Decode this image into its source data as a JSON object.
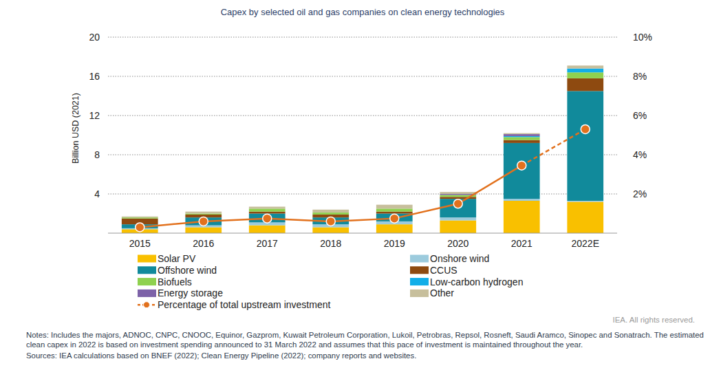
{
  "chart_data": {
    "type": "bar",
    "title": "Capex by selected oil and gas companies on clean energy technologies",
    "y_label": "Billion USD (2021)",
    "categories": [
      "2015",
      "2016",
      "2017",
      "2018",
      "2019",
      "2020",
      "2021",
      "2022E"
    ],
    "stacked": true,
    "grid": true,
    "legend": "bottom",
    "ylim": [
      0,
      20
    ],
    "yticks": [
      4,
      8,
      12,
      16,
      20
    ],
    "y2lim": [
      0,
      10
    ],
    "y2ticks": [
      {
        "value": 2,
        "label": "2%"
      },
      {
        "value": 4,
        "label": "4%"
      },
      {
        "value": 6,
        "label": "6%"
      },
      {
        "value": 8,
        "label": "8%"
      },
      {
        "value": 10,
        "label": "10%"
      }
    ],
    "series": [
      {
        "name": "Solar PV",
        "type": "bar",
        "color": "#f9c000",
        "values": [
          0.4,
          0.6,
          0.8,
          0.6,
          0.9,
          1.3,
          3.3,
          3.2
        ]
      },
      {
        "name": "Onshore wind",
        "type": "bar",
        "color": "#9ccbdd",
        "values": [
          0.1,
          0.2,
          0.3,
          0.3,
          0.3,
          0.3,
          0.2,
          0.1
        ]
      },
      {
        "name": "Offshore wind",
        "type": "bar",
        "color": "#118a9b",
        "values": [
          0.4,
          0.8,
          0.9,
          0.7,
          0.8,
          1.9,
          5.7,
          11.2
        ]
      },
      {
        "name": "CCUS",
        "type": "bar",
        "color": "#8e4a10",
        "values": [
          0.6,
          0.3,
          0.2,
          0.3,
          0.2,
          0.2,
          0.3,
          1.3
        ]
      },
      {
        "name": "Biofuels",
        "type": "bar",
        "color": "#8fd14f",
        "values": [
          0.1,
          0.1,
          0.3,
          0.2,
          0.3,
          0.2,
          0.3,
          0.6
        ]
      },
      {
        "name": "Low-carbon hydrogen",
        "type": "bar",
        "color": "#12aee8",
        "values": [
          0,
          0,
          0,
          0,
          0,
          0,
          0.1,
          0.4
        ]
      },
      {
        "name": "Energy storage",
        "type": "bar",
        "color": "#7d62a8",
        "values": [
          0,
          0,
          0,
          0,
          0,
          0.1,
          0.2,
          0
        ]
      },
      {
        "name": "Other",
        "type": "bar",
        "color": "#c7bf9c",
        "values": [
          0.1,
          0.2,
          0.2,
          0.3,
          0.4,
          0.2,
          0.1,
          0.3
        ]
      },
      {
        "name": "Percentage of total upstream investment",
        "type": "line",
        "axis": "y2",
        "color": "#e2711d",
        "marker": "circle",
        "line_style": "solid",
        "values": [
          0.3,
          0.6,
          0.75,
          0.6,
          0.75,
          1.5,
          3.45,
          5.3
        ]
      }
    ],
    "annotations": [
      "IEA. All rights reserved.",
      "Notes: Includes the majors, ADNOC, CNPC, CNOOC, Equinor, Gazprom, Kuwait Petroleum Corporation, Lukoil, Petrobras, Repsol, Rosneft, Saudi Aramco, Sinopec and Sonatrach. The estimated clean capex in 2022 is based on investment spending announced to 31 March 2022 and assumes that this pace of investment is maintained throughout the year.",
      "Sources: IEA calculations based on BNEF (2022); Clean Energy Pipeline (2022); company reports and websites."
    ]
  }
}
